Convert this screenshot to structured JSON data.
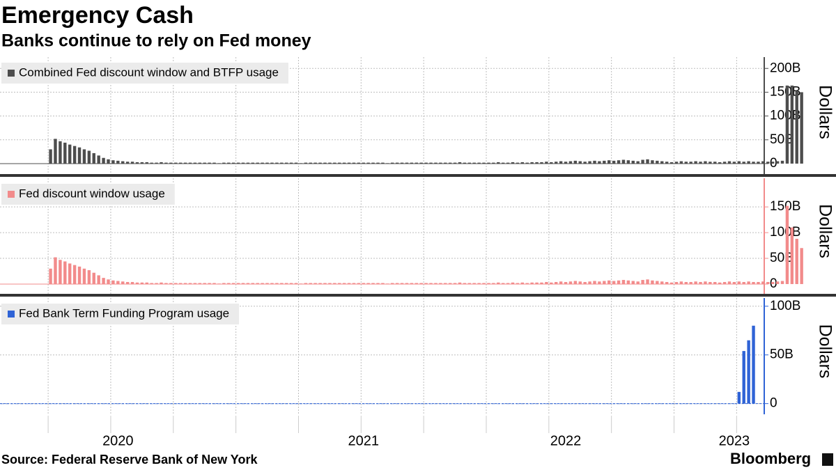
{
  "title": "Emergency Cash",
  "subtitle": "Banks continue to rely on Fed money",
  "source": "Source: Federal Reserve Bank of New York",
  "brand": "Bloomberg",
  "chart_data": [
    {
      "type": "bar",
      "ylabel": "Dollars",
      "ylim": [
        -22,
        215
      ],
      "yticks": [
        0,
        {
          "value": 50,
          "label": "50B"
        },
        {
          "value": 100,
          "label": "100B"
        },
        {
          "value": 150,
          "label": "150B"
        },
        {
          "value": 200,
          "label": "200B"
        }
      ],
      "grid": true,
      "series": [
        {
          "name": "Combined Fed discount window and BTFP usage",
          "color": "#4d4d4d",
          "values": [
            0.5,
            0.5,
            0.5,
            0.5,
            0.5,
            0.5,
            0.5,
            0.5,
            0.5,
            0.5,
            30,
            52,
            47,
            44,
            40,
            37,
            34,
            30,
            27,
            22,
            17,
            12,
            9,
            7,
            6,
            5,
            4,
            4,
            3,
            3,
            3,
            2,
            2,
            3,
            2,
            2,
            2,
            2,
            2,
            2,
            2,
            2,
            2,
            2,
            2,
            1,
            2,
            2,
            2,
            2,
            2,
            2,
            2,
            2,
            2,
            2,
            2,
            2,
            2,
            2,
            2,
            2,
            1,
            2,
            2,
            2,
            2,
            2,
            2,
            2,
            2,
            2,
            2,
            2,
            2,
            2,
            2,
            2,
            2,
            2,
            1,
            2,
            2,
            2,
            2,
            2,
            2,
            2,
            2,
            2,
            2,
            2,
            2,
            2,
            2,
            3,
            2,
            2,
            2,
            2,
            2,
            2,
            2,
            3,
            2,
            2,
            3,
            2,
            3,
            2,
            3,
            3,
            3,
            4,
            3,
            4,
            5,
            4,
            5,
            6,
            5,
            4,
            5,
            6,
            5,
            6,
            7,
            6,
            7,
            8,
            7,
            6,
            5,
            8,
            9,
            7,
            6,
            5,
            4,
            3,
            4,
            5,
            4,
            4,
            5,
            4,
            5,
            4,
            4,
            3,
            4,
            5,
            4,
            5,
            4,
            5,
            4,
            4,
            5,
            4,
            4,
            5,
            6,
            164,
            164,
            153,
            150
          ]
        }
      ]
    },
    {
      "type": "bar",
      "ylabel": "Dollars",
      "ylim": [
        -19,
        203
      ],
      "yticks": [
        0,
        {
          "value": 50,
          "label": "50B"
        },
        {
          "value": 100,
          "label": "100B"
        },
        {
          "value": 150,
          "label": "150B"
        }
      ],
      "grid": true,
      "series": [
        {
          "name": "Fed discount window usage",
          "color": "#f28b8b",
          "values": [
            0.5,
            0.5,
            0.5,
            0.5,
            0.5,
            0.5,
            0.5,
            0.5,
            0.5,
            0.5,
            30,
            52,
            47,
            44,
            40,
            37,
            34,
            30,
            27,
            22,
            17,
            12,
            9,
            7,
            6,
            5,
            4,
            4,
            3,
            3,
            3,
            2,
            2,
            3,
            2,
            2,
            2,
            2,
            2,
            2,
            2,
            2,
            2,
            2,
            2,
            1,
            2,
            2,
            2,
            2,
            2,
            2,
            2,
            2,
            2,
            2,
            2,
            2,
            2,
            2,
            2,
            2,
            1,
            2,
            2,
            2,
            2,
            2,
            2,
            2,
            2,
            2,
            2,
            2,
            2,
            2,
            2,
            2,
            2,
            2,
            1,
            2,
            2,
            2,
            2,
            2,
            2,
            2,
            2,
            2,
            2,
            2,
            2,
            2,
            2,
            3,
            2,
            2,
            2,
            2,
            2,
            2,
            2,
            3,
            2,
            2,
            3,
            2,
            3,
            2,
            3,
            3,
            3,
            4,
            3,
            4,
            5,
            4,
            5,
            6,
            5,
            4,
            5,
            6,
            5,
            6,
            7,
            6,
            7,
            8,
            7,
            6,
            5,
            8,
            9,
            7,
            6,
            5,
            4,
            3,
            4,
            5,
            4,
            4,
            5,
            4,
            5,
            4,
            4,
            3,
            4,
            5,
            4,
            5,
            4,
            5,
            4,
            4,
            5,
            4,
            4,
            5,
            6,
            152,
            110,
            88,
            70
          ]
        }
      ]
    },
    {
      "type": "bar",
      "ylabel": "Dollars",
      "ylim": [
        -11,
        107
      ],
      "yticks": [
        0,
        {
          "value": 50,
          "label": "50B"
        },
        {
          "value": 100,
          "label": "100B"
        }
      ],
      "grid": true,
      "categories": [
        null,
        null,
        null,
        null,
        null,
        null,
        null,
        null,
        null,
        null,
        null,
        null,
        null,
        null,
        null,
        null,
        null,
        null,
        null,
        null,
        null,
        null,
        null,
        null,
        "2020",
        null,
        null,
        null,
        null,
        null,
        null,
        null,
        null,
        null,
        null,
        null,
        null,
        null,
        null,
        null,
        null,
        null,
        null,
        null,
        null,
        null,
        null,
        null,
        null,
        null,
        null,
        null,
        null,
        null,
        null,
        null,
        null,
        null,
        null,
        null,
        null,
        null,
        null,
        null,
        null,
        null,
        null,
        null,
        null,
        null,
        null,
        null,
        null,
        null,
        null,
        "2021",
        null,
        null,
        null,
        null,
        null,
        null,
        null,
        null,
        null,
        null,
        null,
        null,
        null,
        null,
        null,
        null,
        null,
        null,
        null,
        null,
        null,
        null,
        null,
        null,
        null,
        null,
        null,
        null,
        null,
        null,
        null,
        null,
        null,
        null,
        null,
        null,
        null,
        null,
        null,
        null,
        null,
        "2022",
        null,
        null,
        null,
        null,
        null,
        null,
        null,
        null,
        null,
        null,
        null,
        null,
        null,
        null,
        null,
        null,
        null,
        null,
        null,
        null,
        null,
        null,
        null,
        null,
        null,
        null,
        null,
        null,
        null,
        null,
        null,
        null,
        null,
        null,
        "2023",
        null,
        null,
        null,
        null
      ],
      "series": [
        {
          "name": "Fed Bank Term Funding Program usage",
          "color": "#2f63d6",
          "values": [
            0,
            0,
            0,
            0,
            0,
            0,
            0,
            0,
            0,
            0,
            0,
            0,
            0,
            0,
            0,
            0,
            0,
            0,
            0,
            0,
            0,
            0,
            0,
            0,
            0,
            0,
            0,
            0,
            0,
            0,
            0,
            0,
            0,
            0,
            0,
            0,
            0,
            0,
            0,
            0,
            0,
            0,
            0,
            0,
            0,
            0,
            0,
            0,
            0,
            0,
            0,
            0,
            0,
            0,
            0,
            0,
            0,
            0,
            0,
            0,
            0,
            0,
            0,
            0,
            0,
            0,
            0,
            0,
            0,
            0,
            0,
            0,
            0,
            0,
            0,
            0,
            0,
            0,
            0,
            0,
            0,
            0,
            0,
            0,
            0,
            0,
            0,
            0,
            0,
            0,
            0,
            0,
            0,
            0,
            0,
            0,
            0,
            0,
            0,
            0,
            0,
            0,
            0,
            0,
            0,
            0,
            0,
            0,
            0,
            0,
            0,
            0,
            0,
            0,
            0,
            0,
            0,
            0,
            0,
            0,
            0,
            0,
            0,
            0,
            0,
            0,
            0,
            0,
            0,
            0,
            0,
            0,
            0,
            0,
            0,
            0,
            0,
            0,
            0,
            0,
            0,
            0,
            0,
            0,
            0,
            0,
            0,
            0,
            0,
            0,
            0,
            0,
            0,
            12,
            54,
            65,
            80
          ]
        }
      ]
    }
  ]
}
